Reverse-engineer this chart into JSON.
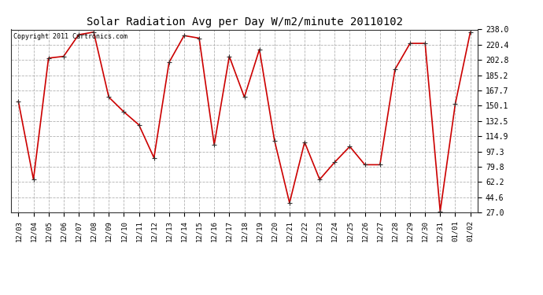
{
  "title": "Solar Radiation Avg per Day W/m2/minute 20110102",
  "copyright": "Copyright 2011 Cartronics.com",
  "dates": [
    "12/03",
    "12/04",
    "12/05",
    "12/06",
    "12/07",
    "12/08",
    "12/09",
    "12/10",
    "12/11",
    "12/12",
    "12/13",
    "12/14",
    "12/15",
    "12/16",
    "12/17",
    "12/18",
    "12/19",
    "12/20",
    "12/21",
    "12/22",
    "12/23",
    "12/24",
    "12/25",
    "12/26",
    "12/27",
    "12/28",
    "12/29",
    "12/30",
    "12/31",
    "01/01",
    "01/02"
  ],
  "values": [
    155,
    65,
    205,
    207,
    232,
    235,
    160,
    143,
    128,
    90,
    200,
    231,
    228,
    105,
    207,
    160,
    215,
    110,
    38,
    108,
    65,
    85,
    103,
    82,
    82,
    192,
    222,
    222,
    28,
    152,
    235
  ],
  "line_color": "#cc0000",
  "marker": "+",
  "marker_size": 5,
  "ylim": [
    27.0,
    238.0
  ],
  "yticks": [
    27.0,
    44.6,
    62.2,
    79.8,
    97.3,
    114.9,
    132.5,
    150.1,
    167.7,
    185.2,
    202.8,
    220.4,
    238.0
  ],
  "background_color": "#ffffff",
  "grid_color": "#aaaaaa",
  "title_fontsize": 10,
  "copyright_fontsize": 6,
  "tick_fontsize": 6.5,
  "ytick_fontsize": 7
}
